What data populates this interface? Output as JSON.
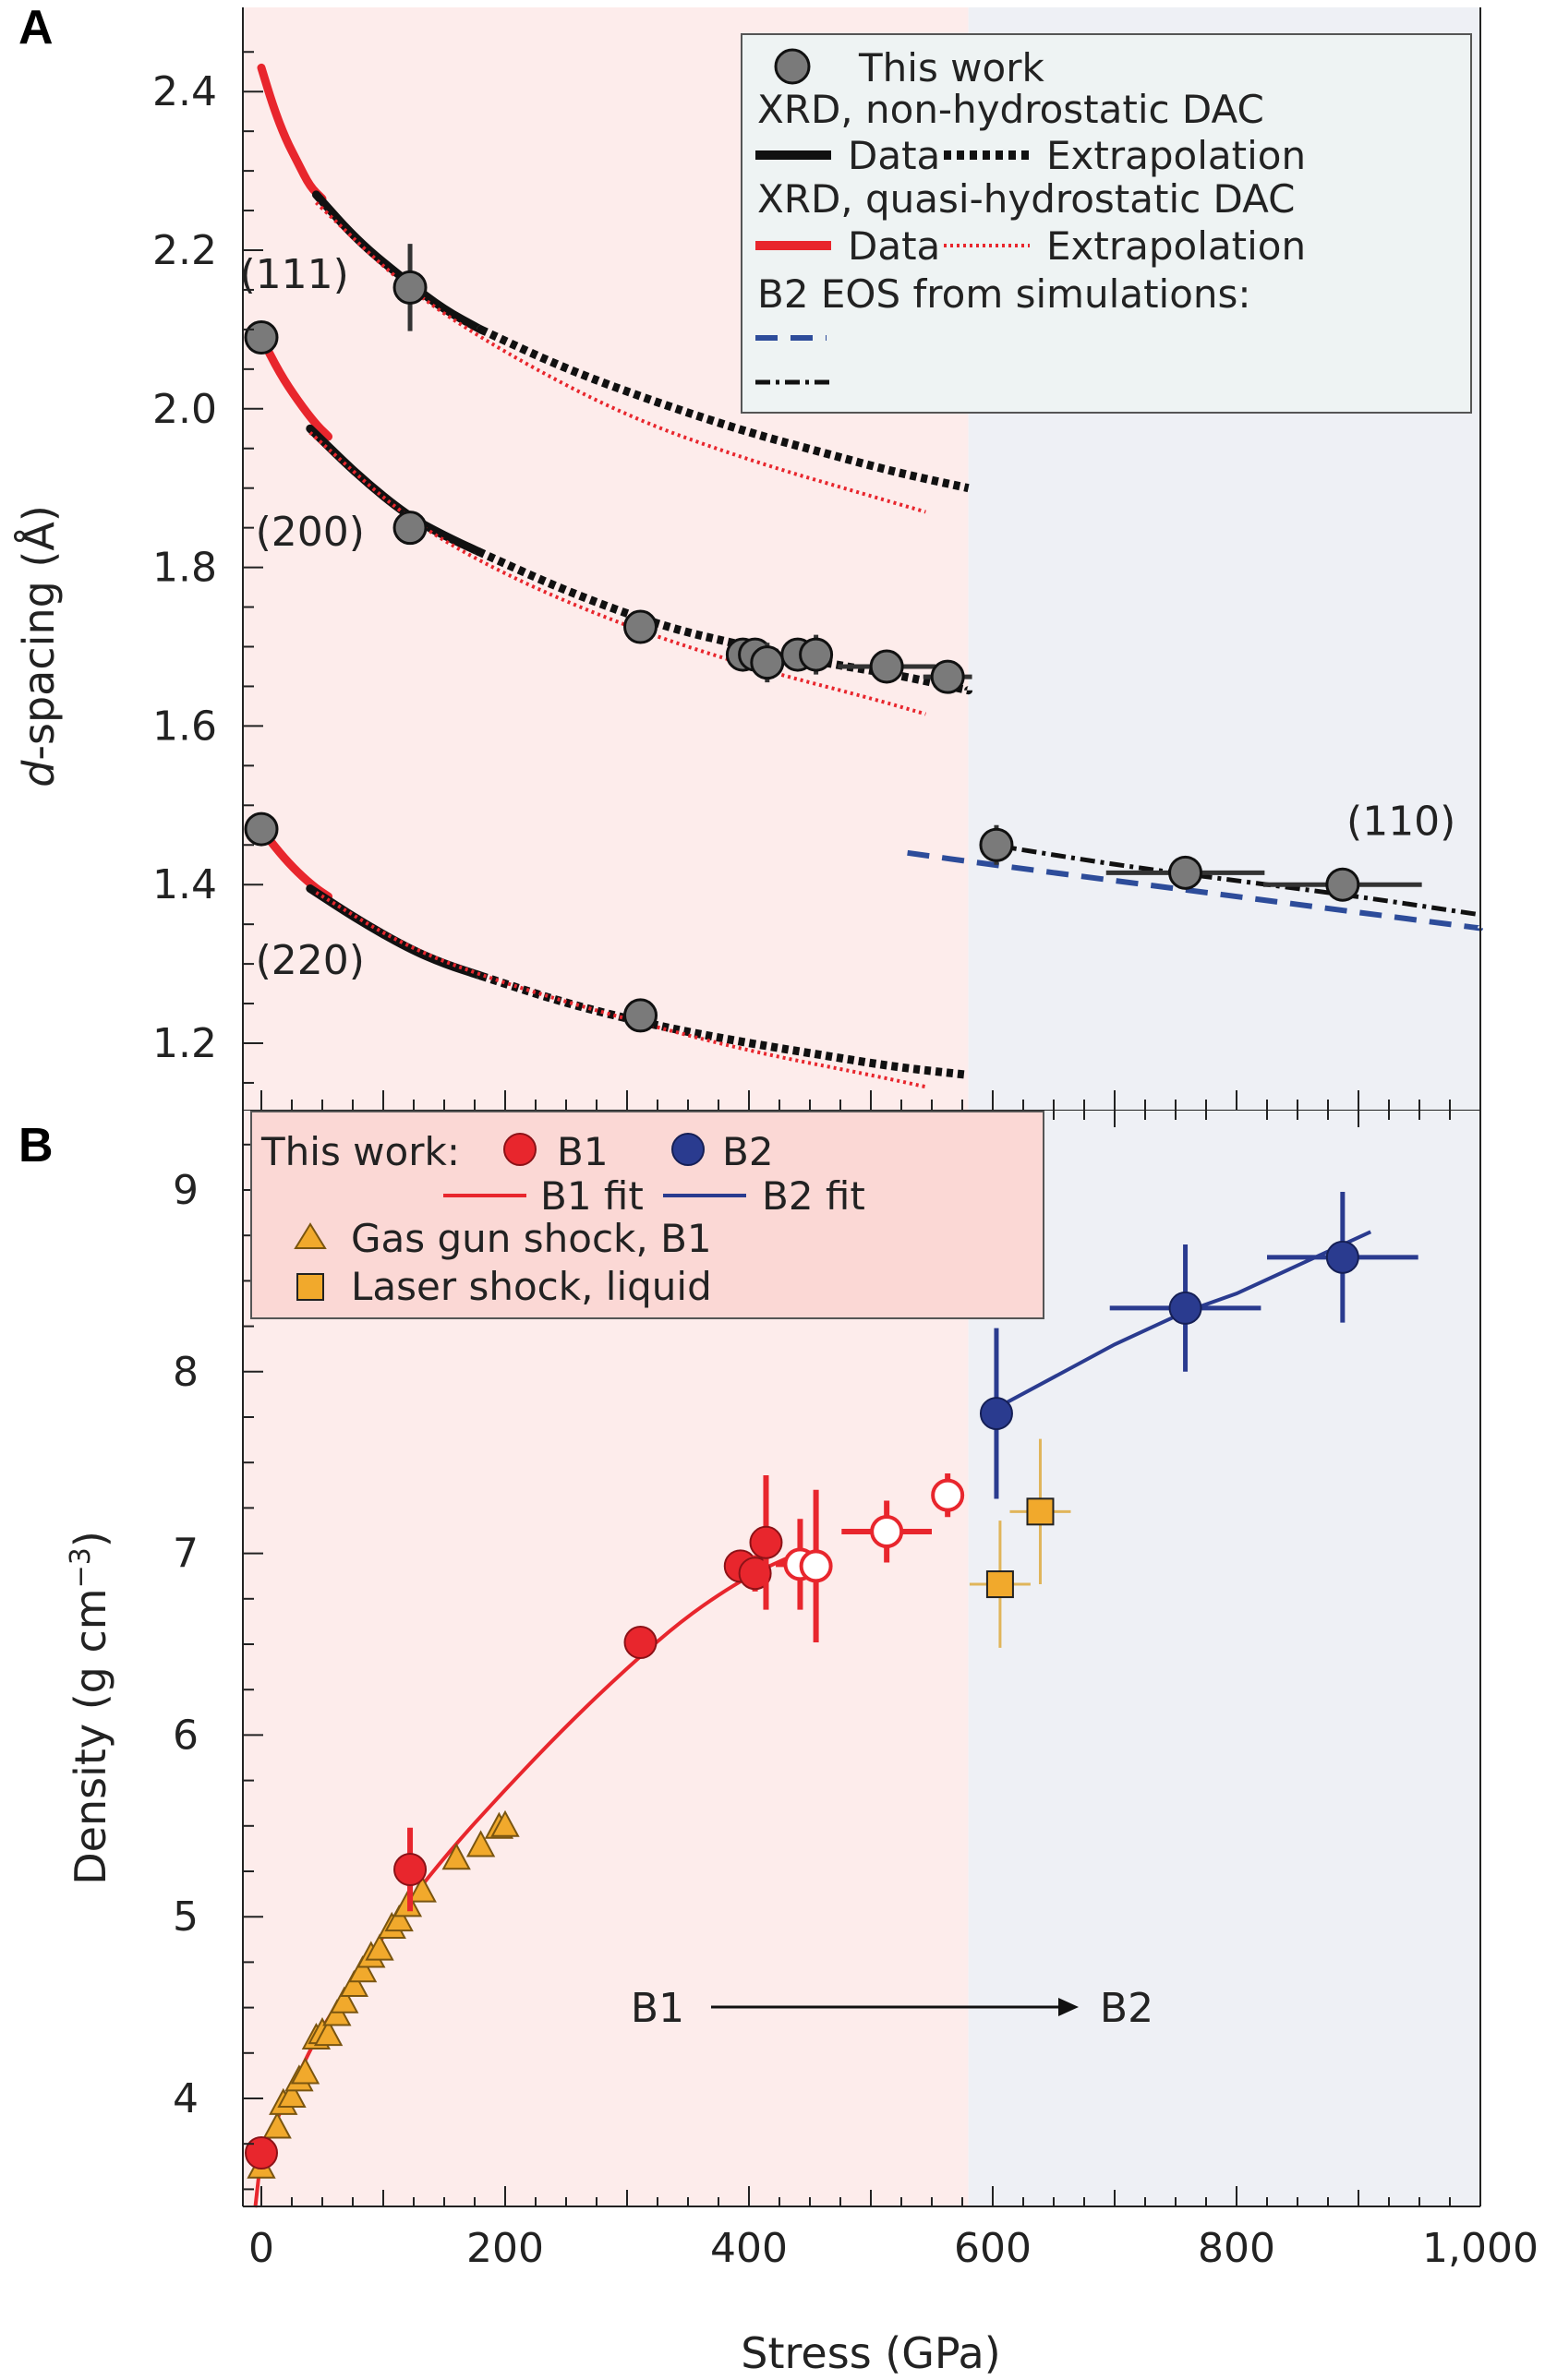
{
  "colors": {
    "b1_bg": "#fdeceb",
    "b2_bg": "#eef0f5",
    "red": "#e8262d",
    "blue": "#2a3b8f",
    "black": "#111111",
    "gray_marker": "#7a7a7a",
    "orange": "#f1a92c",
    "legend_a_bg": "#eef3f3",
    "legend_b_bg": "#fbd8d5",
    "sim_dash_blue": "#2d4c9a"
  },
  "chart_data": [
    {
      "panel": "A",
      "type": "line",
      "ylabel_italic": "d",
      "ylabel_rest": "-spacing (Å)",
      "xlim": [
        -10,
        1000
      ],
      "ylim": [
        1.125,
        2.5
      ],
      "yticks": [
        1.2,
        1.4,
        1.6,
        1.8,
        2.0,
        2.2,
        2.4
      ],
      "ytick_labels": [
        "1.2",
        "1.4",
        "1.6",
        "1.8",
        "2.0",
        "2.2",
        "2.4"
      ],
      "phase_boundary": 580,
      "peak_labels": [
        {
          "text": "(111)",
          "x": 27,
          "y": 2.17
        },
        {
          "text": "(200)",
          "x": 40,
          "y": 1.845
        },
        {
          "text": "(220)",
          "x": 40,
          "y": 1.305
        },
        {
          "text": "(110)",
          "x": 935,
          "y": 1.48
        }
      ],
      "legend": {
        "this_work": "This work",
        "nonhydro_title": "XRD, non-hydrostatic DAC",
        "quasi_title": "XRD, quasi-hydrostatic DAC",
        "data_label": "Data",
        "extrap_label": "Extrapolation",
        "b2_eos_title": "B2 EOS from simulations:"
      },
      "series": [
        {
          "name": "111 quasi data",
          "style": "red-solid",
          "x": [
            0,
            10,
            20,
            30,
            40,
            50
          ],
          "y": [
            2.43,
            2.38,
            2.34,
            2.31,
            2.28,
            2.265
          ]
        },
        {
          "name": "111 non-hydro data",
          "style": "black-solid",
          "x": [
            45,
            80,
            120,
            150,
            180
          ],
          "y": [
            2.27,
            2.21,
            2.16,
            2.125,
            2.1
          ]
        },
        {
          "name": "111 non-hydro extrapolation",
          "style": "black-dotted",
          "x": [
            180,
            250,
            330,
            400,
            460,
            520,
            580
          ],
          "y": [
            2.1,
            2.05,
            2.005,
            1.97,
            1.945,
            1.92,
            1.9
          ]
        },
        {
          "name": "111 quasi extrapolation",
          "style": "red-dotted",
          "x": [
            45,
            120,
            200,
            300,
            400,
            500,
            545
          ],
          "y": [
            2.26,
            2.15,
            2.07,
            1.99,
            1.935,
            1.89,
            1.87
          ]
        },
        {
          "name": "200 quasi data",
          "style": "red-solid",
          "x": [
            0,
            15,
            30,
            45,
            55
          ],
          "y": [
            2.09,
            2.045,
            2.01,
            1.98,
            1.965
          ]
        },
        {
          "name": "200 non-hydro data",
          "style": "black-solid",
          "x": [
            40,
            80,
            120,
            150,
            178
          ],
          "y": [
            1.975,
            1.915,
            1.865,
            1.84,
            1.82
          ]
        },
        {
          "name": "200 non-hydro extrapolation",
          "style": "black-dotted",
          "x": [
            178,
            250,
            330,
            400,
            460,
            520,
            580
          ],
          "y": [
            1.82,
            1.77,
            1.725,
            1.7,
            1.68,
            1.665,
            1.645
          ]
        },
        {
          "name": "200 quasi extrapolation",
          "style": "red-dotted",
          "x": [
            40,
            120,
            200,
            300,
            400,
            500,
            545
          ],
          "y": [
            1.97,
            1.86,
            1.79,
            1.725,
            1.675,
            1.635,
            1.615
          ]
        },
        {
          "name": "220 quasi data",
          "style": "red-solid",
          "x": [
            0,
            15,
            30,
            45,
            55
          ],
          "y": [
            1.47,
            1.44,
            1.415,
            1.395,
            1.385
          ]
        },
        {
          "name": "220 non-hydro data",
          "style": "black-solid",
          "x": [
            40,
            80,
            120,
            150,
            180
          ],
          "y": [
            1.395,
            1.355,
            1.32,
            1.3,
            1.285
          ]
        },
        {
          "name": "220 non-hydro extrapolation",
          "style": "black-dotted",
          "x": [
            180,
            250,
            330,
            400,
            460,
            520,
            580
          ],
          "y": [
            1.285,
            1.25,
            1.22,
            1.2,
            1.185,
            1.17,
            1.16
          ]
        },
        {
          "name": "220 quasi extrapolation",
          "style": "red-dotted",
          "x": [
            45,
            120,
            200,
            300,
            400,
            500,
            545
          ],
          "y": [
            1.39,
            1.32,
            1.275,
            1.23,
            1.19,
            1.16,
            1.145
          ]
        },
        {
          "name": "B2 EOS simulation (blue dashed)",
          "style": "blue-dashed",
          "x": [
            530,
            600,
            700,
            800,
            900,
            1000
          ],
          "y": [
            1.44,
            1.425,
            1.405,
            1.385,
            1.365,
            1.345
          ]
        },
        {
          "name": "B2 EOS simulation (dash-dot)",
          "style": "black-dashdot",
          "x": [
            600,
            700,
            800,
            900,
            1000
          ],
          "y": [
            1.45,
            1.425,
            1.405,
            1.385,
            1.362
          ]
        }
      ],
      "points": [
        {
          "x": 0,
          "y": 2.09,
          "yerr": 0.02,
          "xerr": 0
        },
        {
          "x": 122,
          "y": 2.153,
          "yerr": 0.055,
          "xerr": 0
        },
        {
          "x": 122,
          "y": 1.85,
          "yerr": 0.02,
          "xerr": 0
        },
        {
          "x": 311,
          "y": 1.725,
          "yerr": 0,
          "xerr": 0
        },
        {
          "x": 395,
          "y": 1.69,
          "yerr": 0,
          "xerr": 0
        },
        {
          "x": 405,
          "y": 1.69,
          "yerr": 0,
          "xerr": 0
        },
        {
          "x": 415,
          "y": 1.68,
          "yerr": 0.025,
          "xerr": 0
        },
        {
          "x": 440,
          "y": 1.69,
          "yerr": 0,
          "xerr": 0
        },
        {
          "x": 455,
          "y": 1.69,
          "yerr": 0.025,
          "xerr": 0
        },
        {
          "x": 513,
          "y": 1.675,
          "yerr": 0,
          "xerr": 40
        },
        {
          "x": 563,
          "y": 1.662,
          "yerr": 0,
          "xerr": 20
        },
        {
          "x": 0,
          "y": 1.47,
          "yerr": 0,
          "xerr": 0
        },
        {
          "x": 311,
          "y": 1.235,
          "yerr": 0,
          "xerr": 0
        },
        {
          "x": 603,
          "y": 1.45,
          "yerr": 0.025,
          "xerr": 0
        },
        {
          "x": 758,
          "y": 1.415,
          "yerr": 0,
          "xerr": 65
        },
        {
          "x": 887,
          "y": 1.4,
          "yerr": 0,
          "xerr": 65
        }
      ]
    },
    {
      "panel": "B",
      "type": "scatter",
      "title": "",
      "xlabel": "Stress (GPa)",
      "ylabel_main": "Density (g cm",
      "ylabel_sup": "−3",
      "ylabel_end": ")",
      "xlim": [
        -10,
        1000
      ],
      "ylim": [
        3.4,
        9.4
      ],
      "xticks": [
        0,
        200,
        400,
        600,
        800,
        1000
      ],
      "xtick_labels": [
        "0",
        "200",
        "400",
        "600",
        "800",
        "1,000"
      ],
      "yticks": [
        4,
        5,
        6,
        7,
        8,
        9
      ],
      "ytick_labels": [
        "4",
        "5",
        "6",
        "7",
        "8",
        "9"
      ],
      "phase_boundary": 580,
      "transition_label_left": "B1",
      "transition_label_right": "B2",
      "legend": {
        "this_work": "This work:",
        "b1": "B1",
        "b2": "B2",
        "b1_fit": "B1 fit",
        "b2_fit": "B2 fit",
        "gas_gun": "Gas gun shock, B1",
        "laser": "Laser shock, liquid"
      },
      "b1_fit": {
        "x": [
          -5,
          0,
          25,
          50,
          100,
          150,
          200,
          250,
          300,
          350,
          400,
          440
        ],
        "y": [
          3.4,
          3.7,
          4.06,
          4.4,
          4.9,
          5.33,
          5.7,
          6.05,
          6.37,
          6.66,
          6.88,
          7.0
        ]
      },
      "b2_fit": {
        "x": [
          603,
          700,
          758,
          800,
          910
        ],
        "y": [
          7.8,
          8.15,
          8.33,
          8.43,
          8.77
        ]
      },
      "b1_points": [
        {
          "x": 0,
          "y": 3.7,
          "xerr": 0,
          "yerr": 0
        },
        {
          "x": 122,
          "y": 5.26,
          "xerr": 0,
          "yerr": 0.23
        },
        {
          "x": 311,
          "y": 6.51,
          "xerr": 0,
          "yerr": 0.07
        },
        {
          "x": 393,
          "y": 6.93,
          "xerr": 0,
          "yerr": 0
        },
        {
          "x": 405,
          "y": 6.89,
          "xerr": 0,
          "yerr": 0.1
        },
        {
          "x": 414,
          "y": 7.06,
          "xerr": 0,
          "yerr": 0.37
        }
      ],
      "b1_open_points": [
        {
          "x": 442,
          "y": 6.94,
          "xerr": 20,
          "yerr": 0.25
        },
        {
          "x": 455,
          "y": 6.93,
          "xerr": 0,
          "yerr": 0.42
        },
        {
          "x": 513,
          "y": 7.12,
          "xerr": 37,
          "yerr": 0.17
        },
        {
          "x": 563,
          "y": 7.32,
          "xerr": 0,
          "yerr": 0.12
        }
      ],
      "b2_points": [
        {
          "x": 603,
          "y": 7.77,
          "xerr": 0,
          "yerr": 0.47
        },
        {
          "x": 758,
          "y": 8.35,
          "xerr": 62,
          "yerr": 0.35
        },
        {
          "x": 887,
          "y": 8.63,
          "xerr": 62,
          "yerr": 0.36
        }
      ],
      "gas_gun_points": [
        {
          "x": 0,
          "y": 3.62
        },
        {
          "x": 13,
          "y": 3.84
        },
        {
          "x": 18,
          "y": 3.97
        },
        {
          "x": 25,
          "y": 4.01
        },
        {
          "x": 31,
          "y": 4.1
        },
        {
          "x": 36,
          "y": 4.14
        },
        {
          "x": 45,
          "y": 4.33
        },
        {
          "x": 50,
          "y": 4.36
        },
        {
          "x": 55,
          "y": 4.35
        },
        {
          "x": 62,
          "y": 4.46
        },
        {
          "x": 68,
          "y": 4.53
        },
        {
          "x": 76,
          "y": 4.62
        },
        {
          "x": 83,
          "y": 4.7
        },
        {
          "x": 90,
          "y": 4.78
        },
        {
          "x": 97,
          "y": 4.82
        },
        {
          "x": 107,
          "y": 4.94
        },
        {
          "x": 113,
          "y": 4.98
        },
        {
          "x": 120,
          "y": 5.06
        },
        {
          "x": 132,
          "y": 5.14
        },
        {
          "x": 160,
          "y": 5.32
        },
        {
          "x": 180,
          "y": 5.39
        },
        {
          "x": 195,
          "y": 5.49
        },
        {
          "x": 200,
          "y": 5.5
        }
      ],
      "laser_points": [
        {
          "x": 606,
          "y": 6.83,
          "xerr": 25,
          "yerr": 0.35
        },
        {
          "x": 639,
          "y": 7.23,
          "xerr": 25,
          "yerr": 0.4
        }
      ]
    }
  ]
}
